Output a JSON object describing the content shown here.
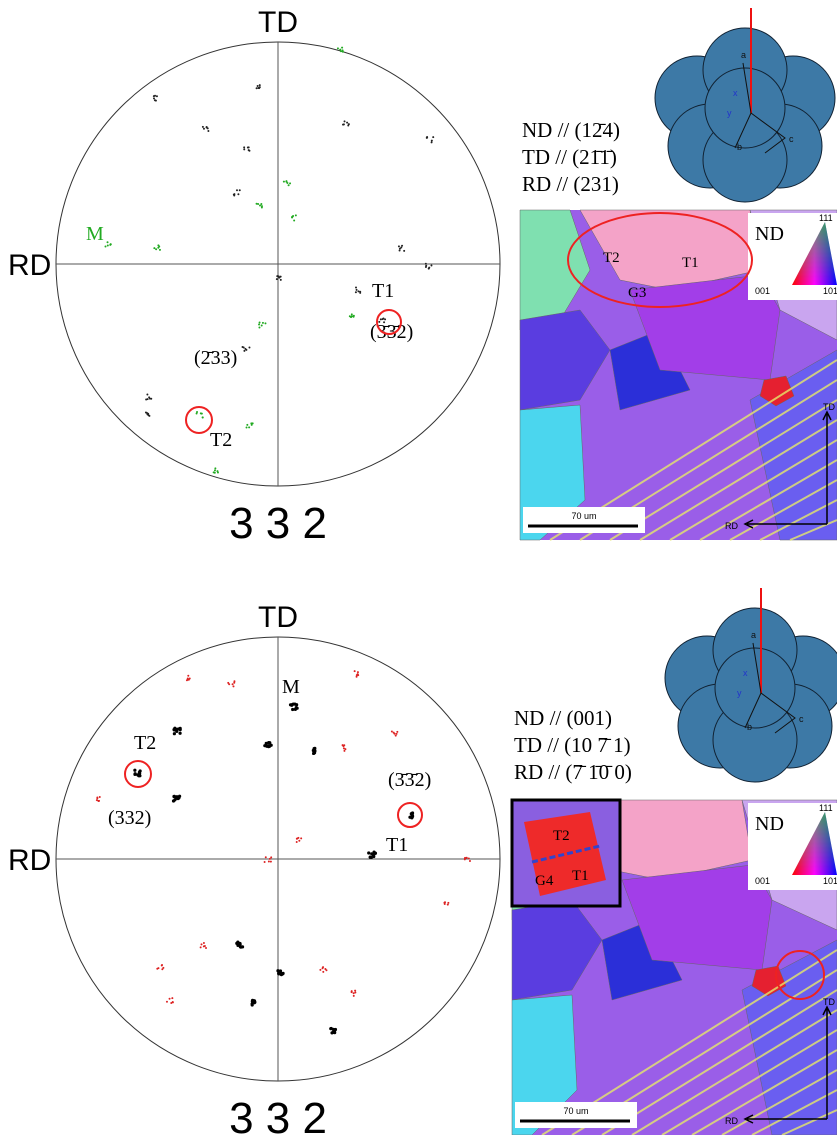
{
  "panels": [
    {
      "pole_figure": {
        "top": "TD",
        "left": "RD",
        "caption": "3 3 2",
        "labels": [
          "M",
          "T1",
          "(3̄3̄2)",
          "(2̄33)",
          "T2"
        ]
      },
      "orientation": [
        "ND // (12̄4)",
        "TD // (21̄1̄)",
        "RD // (231)"
      ],
      "map": {
        "labels": [
          "T2",
          "T1",
          "G3"
        ],
        "legend": {
          "title": "ND",
          "corners": [
            "111",
            "001",
            "101"
          ]
        },
        "scale_bar": "70 um",
        "axes": [
          "TD",
          "RD"
        ]
      },
      "crystal": [
        "a",
        "b",
        "c",
        "x",
        "y"
      ]
    },
    {
      "pole_figure": {
        "top": "TD",
        "left": "RD",
        "caption": "3 3 2",
        "labels": [
          "M",
          "T2",
          "(332)",
          "(3̄3̄2)",
          "T1"
        ]
      },
      "orientation": [
        "ND // (001)",
        "TD // (10 7̄ 1)",
        "RD // (7̄  1̄0̄ 0)"
      ],
      "map": {
        "labels": [
          "T2",
          "G4",
          "T1"
        ],
        "legend": {
          "title": "ND",
          "corners": [
            "111",
            "001",
            "101"
          ]
        },
        "scale_bar": "70 um",
        "axes": [
          "TD",
          "RD"
        ]
      },
      "crystal": [
        "a",
        "b",
        "c",
        "x",
        "y"
      ]
    }
  ]
}
